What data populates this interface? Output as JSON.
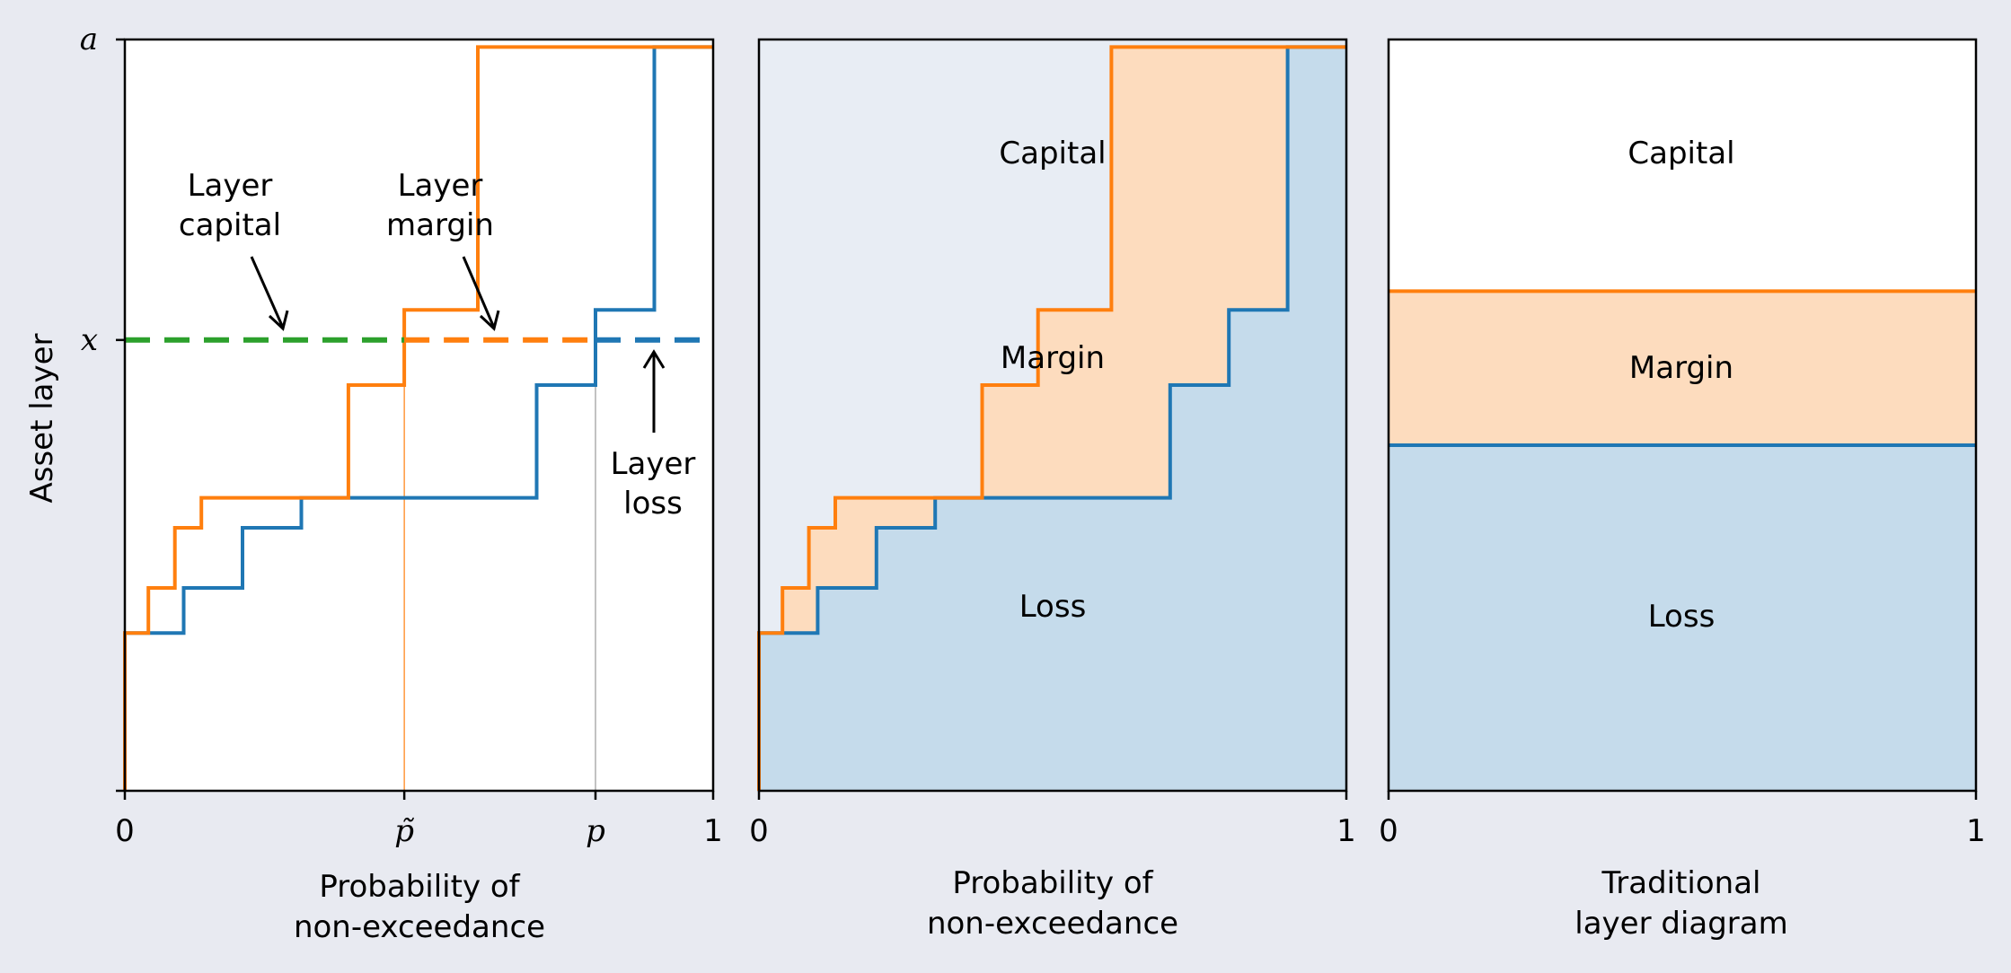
{
  "colors": {
    "background": "#e8eaf1",
    "loss": "#1f77b4",
    "premium": "#ff7f0e",
    "capital_line": "#2ca02c",
    "loss_fill": "#c5dbeb",
    "margin_fill": "#fddcbe",
    "capital_fill": "#e8edf4"
  },
  "chart_data": [
    {
      "type": "line",
      "panel": "left",
      "ylabel": "Asset layer",
      "xlabel_lines": [
        "Probability of",
        "non-exceedance"
      ],
      "xlim": [
        0,
        1
      ],
      "ylim": [
        0,
        1
      ],
      "x_ticks": [
        {
          "value": 0,
          "label": "0",
          "italic": false
        },
        {
          "value": 0.475,
          "label": "p̃",
          "italic": true
        },
        {
          "value": 0.8,
          "label": "p",
          "italic": true
        },
        {
          "value": 1,
          "label": "1",
          "italic": false
        }
      ],
      "y_ticks": [
        {
          "value": 0.6,
          "label": "x"
        },
        {
          "value": 1.0,
          "label": "a"
        }
      ],
      "series": [
        {
          "key": "loss",
          "x": [
            0,
            0.0,
            0.1,
            0.1,
            0.2,
            0.2,
            0.3,
            0.3,
            0.7,
            0.7,
            0.8,
            0.8,
            0.9,
            0.9,
            1.0
          ],
          "y": [
            0,
            0.21,
            0.21,
            0.27,
            0.27,
            0.35,
            0.35,
            0.39,
            0.39,
            0.54,
            0.54,
            0.64,
            0.64,
            0.99,
            0.99
          ]
        },
        {
          "key": "premium",
          "x": [
            0,
            0.0,
            0.04,
            0.04,
            0.085,
            0.085,
            0.13,
            0.13,
            0.38,
            0.38,
            0.475,
            0.475,
            0.6,
            0.6,
            1.0
          ],
          "y": [
            0,
            0.21,
            0.21,
            0.27,
            0.27,
            0.35,
            0.35,
            0.39,
            0.39,
            0.54,
            0.54,
            0.64,
            0.64,
            0.99,
            0.99
          ]
        }
      ],
      "threshold_y": 0.6,
      "p_tilde": 0.475,
      "p": 0.8,
      "annotations": [
        {
          "key": "layer_capital",
          "lines": [
            "Layer",
            "capital"
          ]
        },
        {
          "key": "layer_margin",
          "lines": [
            "Layer",
            "margin"
          ]
        },
        {
          "key": "layer_loss",
          "lines": [
            "Layer",
            "loss"
          ]
        }
      ]
    },
    {
      "type": "area",
      "panel": "middle",
      "xlabel_lines": [
        "Probability of",
        "non-exceedance"
      ],
      "xlim": [
        0,
        1
      ],
      "ylim": [
        0,
        1
      ],
      "x_ticks": [
        {
          "value": 0,
          "label": "0"
        },
        {
          "value": 1,
          "label": "1"
        }
      ],
      "region_labels": [
        "Capital",
        "Margin",
        "Loss"
      ]
    },
    {
      "type": "area",
      "panel": "right",
      "xlabel_lines": [
        "Traditional",
        "layer diagram"
      ],
      "xlim": [
        0,
        1
      ],
      "ylim": [
        0,
        1
      ],
      "x_ticks": [
        {
          "value": 0,
          "label": "0"
        },
        {
          "value": 1,
          "label": "1"
        }
      ],
      "loss_level": 0.46,
      "premium_level": 0.665,
      "region_labels": [
        "Capital",
        "Margin",
        "Loss"
      ]
    }
  ]
}
